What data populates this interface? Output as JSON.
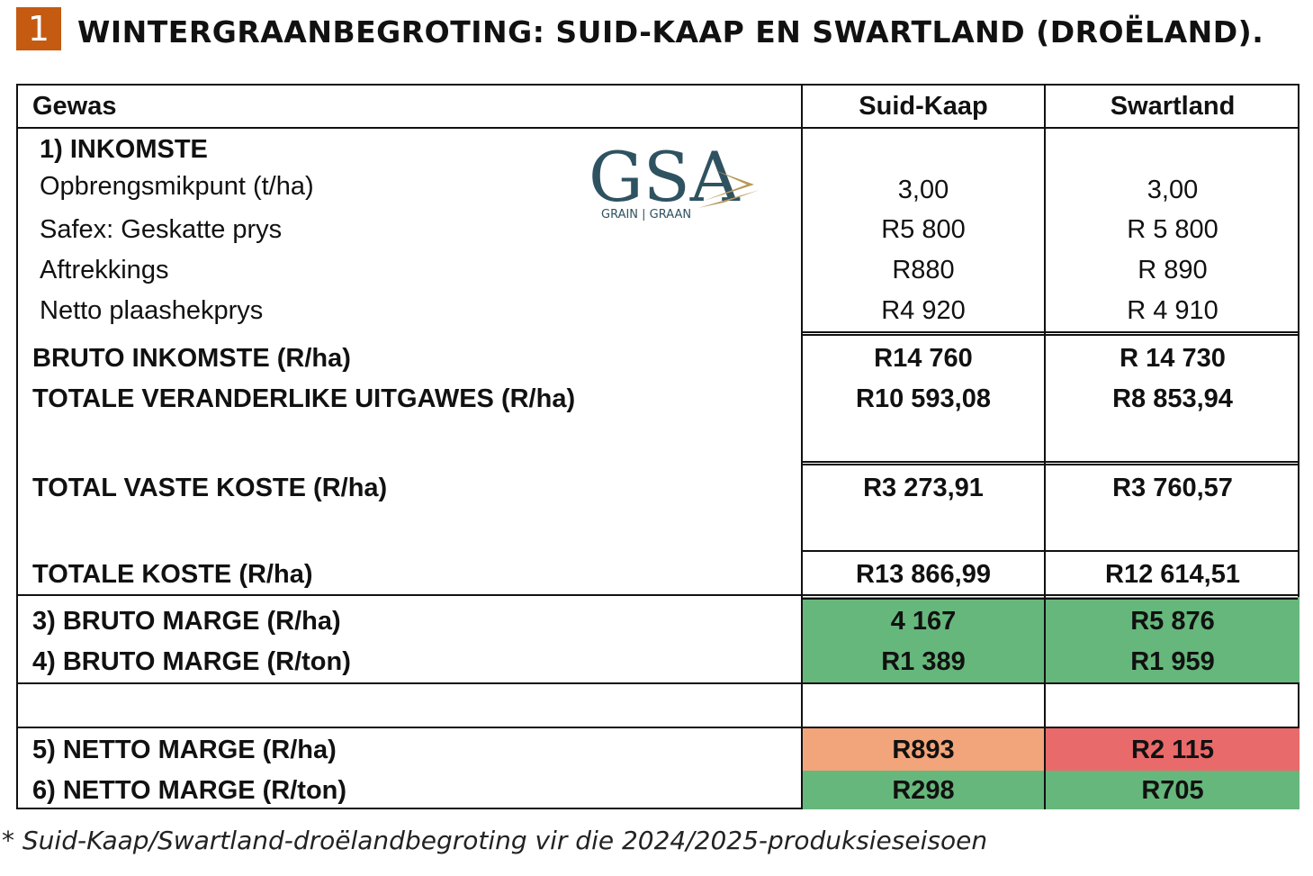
{
  "badge_number": "1",
  "title": "WINTERGRAANBEGROTING: SUID-KAAP EN SWARTLAND (DROËLAND).",
  "header": {
    "crop": "Gewas",
    "col1": "Suid-Kaap",
    "col2": "Swartland"
  },
  "logo": {
    "text": "GSA",
    "subtext": "GRAIN | GRAAN"
  },
  "income": {
    "section_title": "1) INKOMSTE",
    "rows": [
      {
        "label": "Opbrengsmikpunt (t/ha)",
        "col1": "3,00",
        "col2": "3,00"
      },
      {
        "label": "Safex: Geskatte prys",
        "col1": "R5 800",
        "col2": "R 5 800"
      },
      {
        "label": "Aftrekkings",
        "col1": "R880",
        "col2": "R 890"
      },
      {
        "label": "Netto plaashekprys",
        "col1": "R4 920",
        "col2": "R 4 910"
      }
    ]
  },
  "totals": {
    "gross_income": {
      "label": "BRUTO INKOMSTE (R/ha)",
      "col1": "R14 760",
      "col2": "R 14 730"
    },
    "variable_costs": {
      "label": "TOTALE VERANDERLIKE UITGAWES (R/ha)",
      "col1": "R10 593,08",
      "col2": "R8 853,94"
    },
    "fixed_costs": {
      "label": "TOTAL VASTE KOSTE (R/ha)",
      "col1": "R3 273,91",
      "col2": "R3 760,57"
    },
    "total_costs": {
      "label": "TOTALE KOSTE (R/ha)",
      "col1": "R13 866,99",
      "col2": "R12 614,51"
    }
  },
  "gross_margin": {
    "per_ha": {
      "label": "3) BRUTO MARGE (R/ha)",
      "col1": "4 167",
      "col2": "R5 876"
    },
    "per_ton": {
      "label": "4) BRUTO MARGE (R/ton)",
      "col1": "R1 389",
      "col2": "R1 959"
    }
  },
  "net_margin": {
    "per_ha": {
      "label": "5) NETTO MARGE (R/ha)",
      "col1": "R893",
      "col2": "R2 115"
    },
    "per_ton": {
      "label": "6) NETTO MARGE (R/ton)",
      "col1": "R298",
      "col2": "R705"
    }
  },
  "footnote": "* Suid-Kaap/Swartland-droëlandbegroting vir die 2024/2025-produksieseisoen",
  "colors": {
    "badge": "#c55a11",
    "green": "#66b77b",
    "orange": "#f2a57a",
    "red": "#e96a6a",
    "logo_text": "#2f5261",
    "logo_accent": "#b8985a"
  }
}
